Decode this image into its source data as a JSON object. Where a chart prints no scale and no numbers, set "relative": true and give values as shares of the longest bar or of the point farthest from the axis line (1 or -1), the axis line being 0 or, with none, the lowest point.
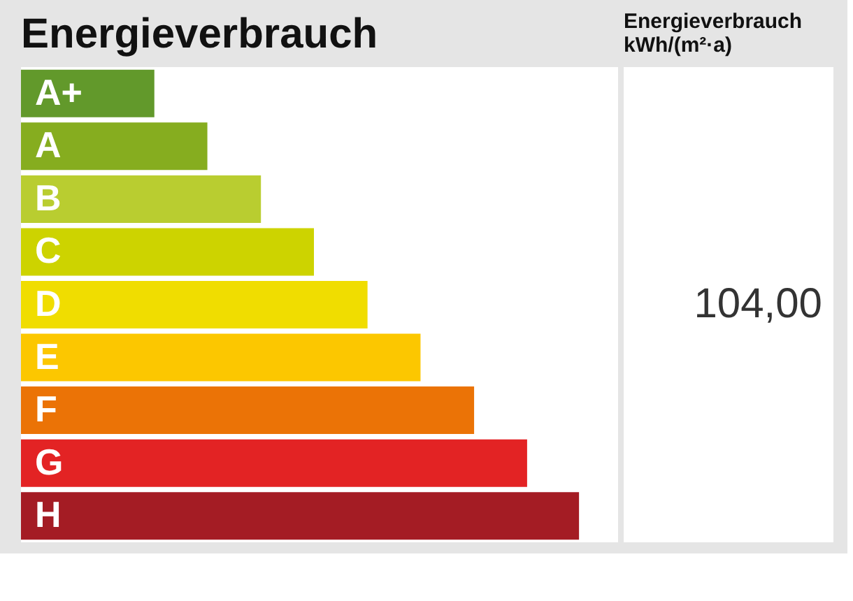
{
  "chart_data": {
    "type": "bar",
    "orientation": "horizontal",
    "relative": true,
    "title": "Energieverbrauch",
    "y2label": "Energieverbrauch\nkWh/(m²·a)",
    "categories": [
      "A+",
      "A",
      "B",
      "C",
      "D",
      "E",
      "F",
      "G",
      "H"
    ],
    "values": [
      0.239,
      0.334,
      0.43,
      0.525,
      0.621,
      0.716,
      0.812,
      0.907,
      1
    ],
    "colors": [
      "#62992b",
      "#86ad1f",
      "#b9cd30",
      "#cdd300",
      "#f0dd00",
      "#fcc700",
      "#eb7306",
      "#e32324",
      "#a41c24"
    ],
    "annotations": [
      "104,00"
    ],
    "tick_labels": "y"
  }
}
